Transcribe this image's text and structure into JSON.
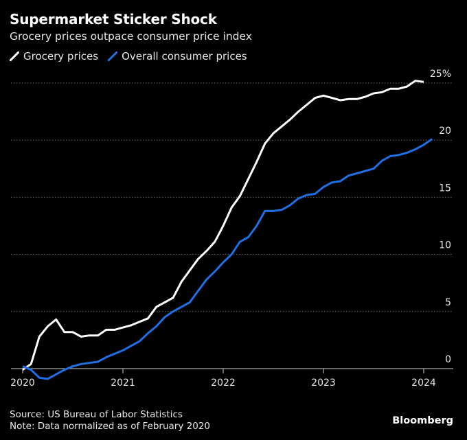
{
  "header": {
    "title": "Supermarket Sticker Shock",
    "subtitle": "Grocery prices outpace consumer price index"
  },
  "footer": {
    "source": "Source: US Bureau of Labor Statistics",
    "note": "Note: Data normalized as of February 2020",
    "brand": "Bloomberg"
  },
  "colors": {
    "background": "#000000",
    "grocery": "#ffffff",
    "overall": "#1f6fe5",
    "grid": "#6e6e6e"
  },
  "chart_data": {
    "type": "line",
    "title": "Supermarket Sticker Shock",
    "subtitle": "Grocery prices outpace consumer price index",
    "xlabel": "",
    "ylabel": "",
    "x_ticks": [
      "2020",
      "2021",
      "2022",
      "2023",
      "2024"
    ],
    "y_ticks": [
      "0",
      "5",
      "10",
      "15",
      "20",
      "25%"
    ],
    "ylim": [
      0,
      25
    ],
    "xlim": [
      "2020-01",
      "2024-03"
    ],
    "grid": true,
    "legend": "top-left",
    "x": [
      "2020-01",
      "2020-02",
      "2020-03",
      "2020-04",
      "2020-05",
      "2020-06",
      "2020-07",
      "2020-08",
      "2020-09",
      "2020-10",
      "2020-11",
      "2020-12",
      "2021-01",
      "2021-02",
      "2021-03",
      "2021-04",
      "2021-05",
      "2021-06",
      "2021-07",
      "2021-08",
      "2021-09",
      "2021-10",
      "2021-11",
      "2021-12",
      "2022-01",
      "2022-02",
      "2022-03",
      "2022-04",
      "2022-05",
      "2022-06",
      "2022-07",
      "2022-08",
      "2022-09",
      "2022-10",
      "2022-11",
      "2022-12",
      "2023-01",
      "2023-02",
      "2023-03",
      "2023-04",
      "2023-05",
      "2023-06",
      "2023-07",
      "2023-08",
      "2023-09",
      "2023-10",
      "2023-11",
      "2023-12",
      "2024-01",
      "2024-02",
      "2024-03"
    ],
    "series": [
      {
        "name": "Grocery prices",
        "values": [
          -0.1,
          0.4,
          2.8,
          3.7,
          4.3,
          3.2,
          3.2,
          2.8,
          2.9,
          2.9,
          3.4,
          3.4,
          3.6,
          3.8,
          4.1,
          4.4,
          5.4,
          5.8,
          6.2,
          7.6,
          8.6,
          9.6,
          10.3,
          11.1,
          12.5,
          14.1,
          15.1,
          16.6,
          18.1,
          19.7,
          20.6,
          21.2,
          21.8,
          22.5,
          23.1,
          23.7,
          23.9,
          23.7,
          23.5,
          23.6,
          23.6,
          23.8,
          24.1,
          24.2,
          24.5,
          24.5,
          24.7,
          25.2,
          25.1,
          null,
          null
        ]
      },
      {
        "name": "Overall consumer prices",
        "values": [
          0.2,
          -0.1,
          -0.8,
          -0.9,
          -0.5,
          -0.1,
          0.2,
          0.4,
          0.5,
          0.6,
          1.0,
          1.3,
          1.6,
          2.0,
          2.4,
          3.1,
          3.7,
          4.5,
          5.0,
          5.4,
          5.8,
          6.8,
          7.8,
          8.5,
          9.3,
          10.0,
          11.1,
          11.5,
          12.5,
          13.8,
          13.8,
          13.9,
          14.3,
          14.9,
          15.2,
          15.3,
          15.9,
          16.3,
          16.4,
          16.9,
          17.1,
          17.3,
          17.5,
          18.2,
          18.6,
          18.7,
          18.9,
          19.2,
          19.6,
          20.1,
          null
        ]
      }
    ]
  }
}
